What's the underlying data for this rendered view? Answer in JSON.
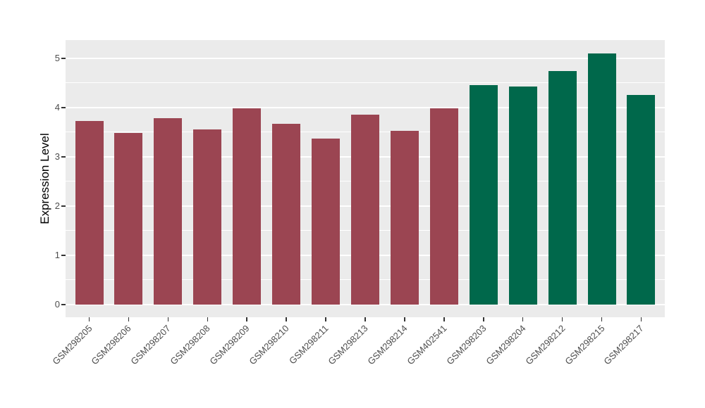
{
  "chart_data": {
    "type": "bar",
    "title": "",
    "xlabel": "",
    "ylabel": "Expression Level",
    "categories": [
      "GSM298205",
      "GSM298206",
      "GSM298207",
      "GSM298208",
      "GSM298209",
      "GSM298210",
      "GSM298211",
      "GSM298213",
      "GSM298214",
      "GSM402541",
      "GSM298203",
      "GSM298204",
      "GSM298212",
      "GSM298215",
      "GSM298217"
    ],
    "values": [
      3.72,
      3.48,
      3.78,
      3.55,
      3.98,
      3.67,
      3.37,
      3.86,
      3.53,
      3.99,
      4.45,
      4.42,
      4.74,
      5.1,
      4.25
    ],
    "bar_colors": [
      "#9B4552",
      "#9B4552",
      "#9B4552",
      "#9B4552",
      "#9B4552",
      "#9B4552",
      "#9B4552",
      "#9B4552",
      "#9B4552",
      "#9B4552",
      "#00684B",
      "#00684B",
      "#00684B",
      "#00684B",
      "#00684B"
    ],
    "yticks": [
      0,
      1,
      2,
      3,
      4,
      5
    ],
    "yticks_minor": [
      0.5,
      1.5,
      2.5,
      3.5,
      4.5
    ],
    "ylim": [
      -0.26,
      5.37
    ],
    "legend_position": "none",
    "grid": "on",
    "panel_bg": "#EBEBEB",
    "grid_color": "#FFFFFF",
    "tick_label_color": "#4D4D4D",
    "axis_title_color": "#000000",
    "x_label_rotation_deg": 45
  }
}
